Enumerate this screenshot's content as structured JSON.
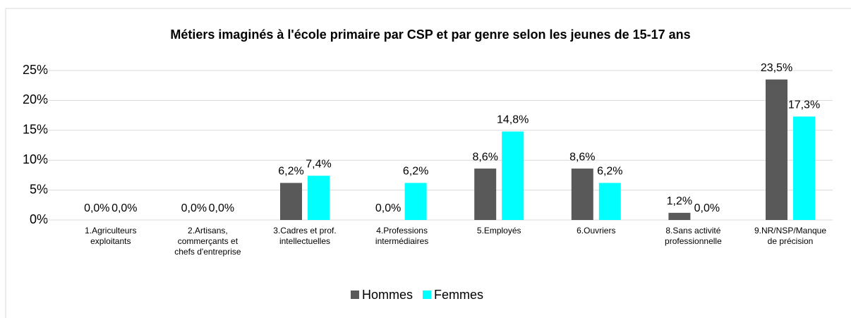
{
  "chart_data": {
    "type": "bar",
    "title": "Métiers imaginés à l'école primaire par CSP et par genre selon les jeunes de 15-17 ans",
    "categories": [
      "1.Agriculteurs exploitants",
      "2.Artisans, commerçants et chefs d'entreprise",
      "3.Cadres et prof. intellectuelles",
      "4.Professions intermédiaires",
      "5.Employés",
      "6.Ouvriers",
      "8.Sans activité professionnelle",
      "9.NR/NSP/Manque de précision"
    ],
    "series": [
      {
        "name": "Hommes",
        "color": "#595959",
        "values": [
          0,
          0,
          6.2,
          0,
          8.6,
          8.6,
          1.2,
          23.5
        ],
        "value_labels": [
          "0,0%",
          "0,0%",
          "6,2%",
          "0,0%",
          "8,6%",
          "8,6%",
          "1,2%",
          "23,5%"
        ]
      },
      {
        "name": "Femmes",
        "color": "#00ffff",
        "values": [
          0,
          0,
          7.4,
          6.2,
          14.8,
          6.2,
          0,
          17.3
        ],
        "value_labels": [
          "0,0%",
          "0,0%",
          "7,4%",
          "6,2%",
          "14,8%",
          "6,2%",
          "0,0%",
          "17,3%"
        ]
      }
    ],
    "ylim": [
      0,
      25
    ],
    "yticks": [
      {
        "value": 0,
        "label": "0%"
      },
      {
        "value": 5,
        "label": "5%"
      },
      {
        "value": 10,
        "label": "10%"
      },
      {
        "value": 15,
        "label": "15%"
      },
      {
        "value": 20,
        "label": "20%"
      },
      {
        "value": 25,
        "label": "25%"
      }
    ],
    "grid": true,
    "legend": "bottom"
  }
}
